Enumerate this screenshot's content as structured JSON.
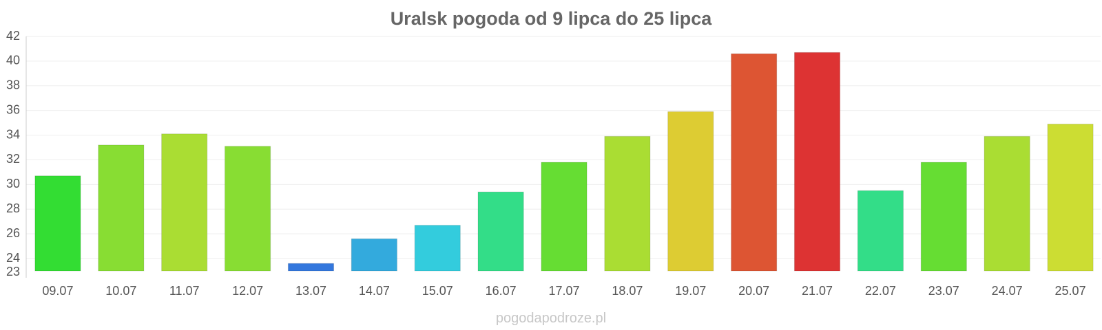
{
  "chart_data": {
    "type": "bar",
    "title": "Uralsk pogoda od 9 lipca do 25 lipca",
    "categories": [
      "09.07",
      "10.07",
      "11.07",
      "12.07",
      "13.07",
      "14.07",
      "15.07",
      "16.07",
      "17.07",
      "18.07",
      "19.07",
      "20.07",
      "21.07",
      "22.07",
      "23.07",
      "24.07",
      "25.07"
    ],
    "values": [
      30.7,
      33.2,
      34.1,
      33.1,
      23.6,
      25.6,
      26.7,
      29.4,
      31.8,
      33.9,
      35.9,
      40.6,
      40.7,
      29.5,
      31.8,
      33.9,
      34.9
    ],
    "bar_colors": [
      "#33dd33",
      "#88dd33",
      "#aadd33",
      "#88dd33",
      "#3377dd",
      "#33aadd",
      "#33ccdd",
      "#33dd88",
      "#66dd33",
      "#aadd33",
      "#ddcc33",
      "#dd5533",
      "#dd3333",
      "#33dd88",
      "#66dd33",
      "#aadd33",
      "#ccdd33"
    ],
    "ylim": [
      23,
      42
    ],
    "yticks": [
      "23",
      "24",
      "26",
      "28",
      "30",
      "32",
      "34",
      "36",
      "38",
      "40",
      "42"
    ],
    "grid": true,
    "xlabel": "",
    "ylabel": ""
  },
  "watermark": "pogodapodroze.pl"
}
